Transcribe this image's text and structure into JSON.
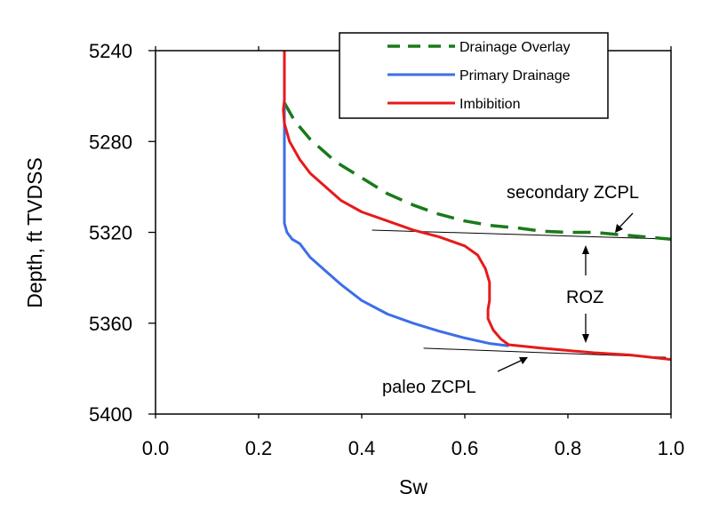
{
  "chart_data": {
    "type": "line",
    "title": "",
    "xlabel": "Sw",
    "ylabel": "Depth, ft TVDSS",
    "xlim": [
      0.0,
      1.0
    ],
    "ylim": [
      5240,
      5400
    ],
    "y_inverted": true,
    "grid": false,
    "x_ticks": [
      "0.0",
      "0.2",
      "0.4",
      "0.6",
      "0.8",
      "1.0"
    ],
    "x_tick_values": [
      0.0,
      0.2,
      0.4,
      0.6,
      0.8,
      1.0
    ],
    "y_ticks": [
      "5240",
      "5280",
      "5320",
      "5360",
      "5400"
    ],
    "y_tick_values": [
      5240,
      5280,
      5320,
      5360,
      5400
    ],
    "legend_position": "top-right",
    "series": [
      {
        "name": "Drainage Overlay",
        "color": "#1a7a1a",
        "style": "dashed",
        "x": [
          0.25,
          0.27,
          0.3,
          0.35,
          0.4,
          0.45,
          0.5,
          0.55,
          0.6,
          0.65,
          0.7,
          0.75,
          0.8,
          0.85,
          0.9,
          0.95,
          1.0
        ],
        "y": [
          5263,
          5271,
          5279,
          5289,
          5296,
          5303,
          5308,
          5312,
          5315,
          5317,
          5318,
          5319.5,
          5320,
          5320,
          5321,
          5322,
          5323
        ]
      },
      {
        "name": "Primary Drainage",
        "color": "#3c6ee6",
        "style": "solid",
        "x": [
          0.25,
          0.25,
          0.25,
          0.255,
          0.265,
          0.28,
          0.29,
          0.3,
          0.33,
          0.36,
          0.4,
          0.45,
          0.5,
          0.55,
          0.6,
          0.65,
          0.685
        ],
        "y": [
          5263,
          5290,
          5316,
          5320,
          5323,
          5325,
          5328,
          5331,
          5337,
          5343,
          5350,
          5356,
          5360,
          5363.5,
          5366.5,
          5369,
          5370
        ]
      },
      {
        "name": "Imbibition",
        "color": "#e61a1a",
        "style": "solid",
        "x": [
          0.25,
          0.25,
          0.248,
          0.25,
          0.26,
          0.28,
          0.3,
          0.33,
          0.36,
          0.4,
          0.45,
          0.5,
          0.55,
          0.6,
          0.625,
          0.64,
          0.648,
          0.648,
          0.645,
          0.645,
          0.655,
          0.67,
          0.685,
          0.75,
          0.85,
          0.92,
          1.0
        ],
        "y": [
          5240,
          5262,
          5266,
          5272,
          5280,
          5288,
          5294,
          5300,
          5306,
          5311,
          5315,
          5319,
          5322,
          5326,
          5330,
          5336,
          5342,
          5350,
          5354,
          5358,
          5363,
          5367,
          5369.5,
          5371,
          5373,
          5374,
          5376
        ]
      }
    ],
    "annotations": [
      {
        "text": "secondary ZCPL",
        "type": "label-with-arrow",
        "arrow_to": {
          "x": 0.89,
          "y": 5320
        }
      },
      {
        "text": "ROZ",
        "type": "label-with-double-arrow",
        "arrow_span_y": [
          5327,
          5365
        ],
        "x": 0.83
      },
      {
        "text": "paleo ZCPL",
        "type": "label-with-arrow",
        "arrow_to": {
          "x": 0.72,
          "y": 5373
        }
      }
    ],
    "reference_lines": [
      {
        "name": "secondary ZCPL line",
        "from": {
          "x": 0.42,
          "y": 5319
        },
        "to": {
          "x": 1.0,
          "y": 5323
        }
      },
      {
        "name": "paleo ZCPL line",
        "from": {
          "x": 0.52,
          "y": 5371
        },
        "to": {
          "x": 0.99,
          "y": 5375
        }
      }
    ]
  }
}
